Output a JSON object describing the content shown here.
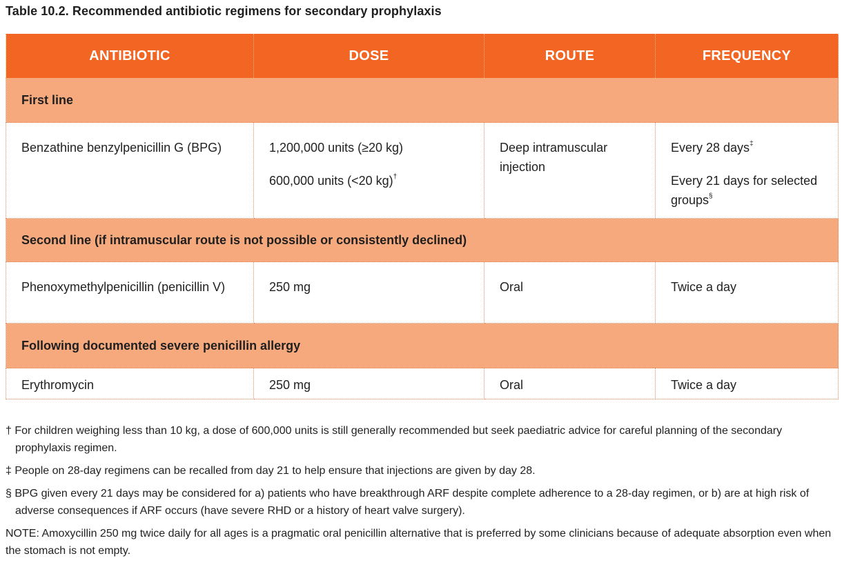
{
  "title": "Table 10.2. Recommended antibiotic regimens for secondary prophylaxis",
  "columns": [
    "ANTIBIOTIC",
    "DOSE",
    "ROUTE",
    "FREQUENCY"
  ],
  "sections": [
    {
      "heading": "First line",
      "row": {
        "antibiotic": "Benzathine benzylpenicillin G (BPG)",
        "dose_1": "1,200,000 units (≥20 kg)",
        "dose_2": "600,000 units (<20 kg)",
        "dose_2_mark": "†",
        "route": "Deep intramuscular injection",
        "frequency_1": "Every 28 days",
        "frequency_1_mark": "‡",
        "frequency_2": "Every 21 days for selected groups",
        "frequency_2_mark": "§"
      }
    },
    {
      "heading": "Second line (if intramuscular route is not possible or consistently declined)",
      "row": {
        "antibiotic": "Phenoxymethylpenicillin (penicillin V)",
        "dose": "250 mg",
        "route": "Oral",
        "frequency": "Twice a day"
      }
    },
    {
      "heading": "Following documented severe penicillin allergy",
      "row": {
        "antibiotic": "Erythromycin",
        "dose": "250 mg",
        "route": "Oral",
        "frequency": "Twice a day"
      }
    }
  ],
  "footnotes": [
    "† For children weighing less than 10 kg, a dose of 600,000 units is still generally recommended but seek paediatric advice for careful planning of the secondary prophylaxis regimen.",
    "‡ People on 28-day regimens can be recalled from day 21 to help ensure that injections are given by day 28.",
    "§ BPG given every 21 days may be considered for a) patients who have breakthrough ARF despite complete adherence to a 28-day regimen, or b) are at high risk of adverse consequences if ARF occurs (have severe RHD or a history of heart valve surgery).",
    "NOTE: Amoxycillin 250 mg twice daily for all ages is a pragmatic oral penicillin alternative that is preferred by some clinicians because of adequate absorption even when the stomach is not empty."
  ],
  "colors": {
    "header": "#f26522",
    "section": "#f7a97e",
    "border": "#e58a5c"
  }
}
